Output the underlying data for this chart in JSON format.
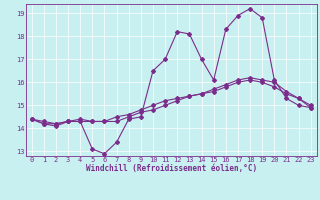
{
  "title": "",
  "xlabel": "Windchill (Refroidissement éolien,°C)",
  "bg_color": "#c8f0f0",
  "line_color": "#7b2d8b",
  "xlim": [
    -0.5,
    23.5
  ],
  "ylim": [
    12.8,
    19.4
  ],
  "xticks": [
    0,
    1,
    2,
    3,
    4,
    5,
    6,
    7,
    8,
    9,
    10,
    11,
    12,
    13,
    14,
    15,
    16,
    17,
    18,
    19,
    20,
    21,
    22,
    23
  ],
  "yticks": [
    13,
    14,
    15,
    16,
    17,
    18,
    19
  ],
  "grid_color": "#ffffff",
  "line1_x": [
    0,
    1,
    2,
    3,
    4,
    5,
    6,
    7,
    8,
    9,
    10,
    11,
    12,
    13,
    14,
    15,
    16,
    17,
    18,
    19,
    20,
    21,
    22,
    23
  ],
  "line1_y": [
    14.4,
    14.2,
    14.1,
    14.3,
    14.3,
    13.1,
    12.9,
    13.4,
    14.4,
    14.5,
    16.5,
    17.0,
    18.2,
    18.1,
    17.0,
    16.1,
    18.3,
    18.9,
    19.2,
    18.8,
    16.1,
    15.3,
    15.0,
    14.9
  ],
  "line2_x": [
    0,
    1,
    2,
    3,
    4,
    5,
    6,
    7,
    8,
    9,
    10,
    11,
    12,
    13,
    14,
    15,
    16,
    17,
    18,
    19,
    20,
    21,
    22,
    23
  ],
  "line2_y": [
    14.4,
    14.3,
    14.2,
    14.3,
    14.3,
    14.3,
    14.3,
    14.3,
    14.5,
    14.7,
    14.8,
    15.0,
    15.2,
    15.4,
    15.5,
    15.6,
    15.8,
    16.0,
    16.1,
    16.0,
    15.8,
    15.5,
    15.3,
    14.9
  ],
  "line3_x": [
    0,
    1,
    2,
    3,
    4,
    5,
    6,
    7,
    8,
    9,
    10,
    11,
    12,
    13,
    14,
    15,
    16,
    17,
    18,
    19,
    20,
    21,
    22,
    23
  ],
  "line3_y": [
    14.4,
    14.2,
    14.2,
    14.3,
    14.4,
    14.3,
    14.3,
    14.5,
    14.6,
    14.8,
    15.0,
    15.2,
    15.3,
    15.4,
    15.5,
    15.7,
    15.9,
    16.1,
    16.2,
    16.1,
    16.0,
    15.6,
    15.3,
    15.0
  ],
  "tick_fontsize": 5.0,
  "xlabel_fontsize": 5.5,
  "marker_size": 2.0,
  "line_width": 0.8
}
